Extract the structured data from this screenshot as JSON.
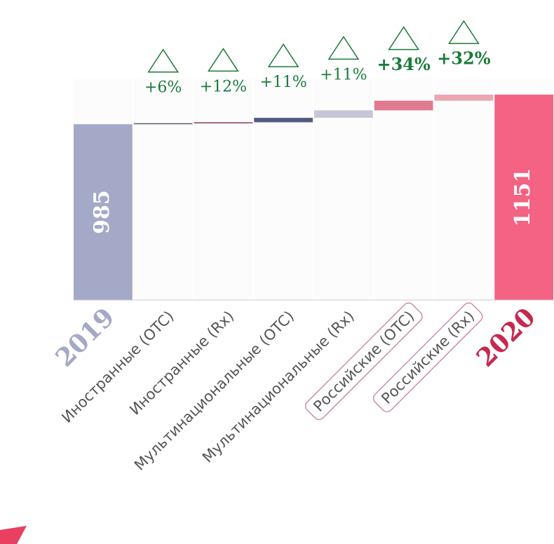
{
  "chart_data": {
    "type": "waterfall",
    "categories": [
      "2019",
      "Иностранные (OTC)",
      "Иностранные (Rx)",
      "Мультинациональные (OTC)",
      "Мультинациональные (Rx)",
      "Российские (OTC)",
      "Российские (Rx)",
      "2020"
    ],
    "measures": [
      "total",
      "relative",
      "relative",
      "relative",
      "relative",
      "relative",
      "relative",
      "total"
    ],
    "values": [
      985,
      6,
      5,
      25,
      42,
      54,
      34,
      1151
    ],
    "colors": [
      "#a3a9c6",
      "#5a5f7e",
      "#8a3a5a",
      "#545a82",
      "#c3c7d8",
      "#e07a8e",
      "#eba6b2",
      "#f46383"
    ],
    "growth": {
      "values": [
        null,
        6,
        12,
        11,
        11,
        34,
        32,
        null
      ],
      "value_labels": [
        null,
        "+6%",
        "+12%",
        "+11%",
        "+11%",
        "+34%",
        "+32%",
        null
      ]
    },
    "ylim": [
      0,
      1200
    ]
  }
}
